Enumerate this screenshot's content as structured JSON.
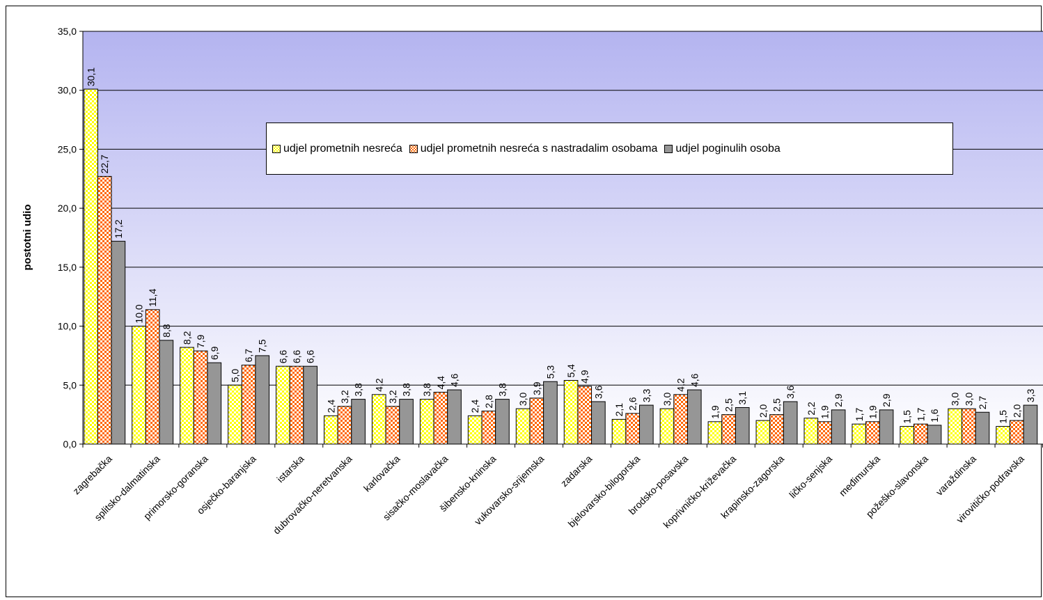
{
  "chart_data": {
    "type": "bar",
    "ylabel": "postotni udio",
    "ylim": [
      0,
      35
    ],
    "yticks": [
      "0,0",
      "5,0",
      "10,0",
      "15,0",
      "20,0",
      "25,0",
      "30,0",
      "35,0"
    ],
    "grid": true,
    "legend_position": "top-center",
    "categories": [
      "zagrebačka",
      "splitsko-dalmatinska",
      "primorsko-goranska",
      "osječko-baranjska",
      "istarska",
      "dubrovačko-neretvanska",
      "karlovačka",
      "sisačko-moslavačka",
      "šibensko-kninska",
      "vukovarsko-srijemska",
      "zadarska",
      "bjelovarsko-bilogorska",
      "brodsko-posavska",
      "koprivničko-križevačka",
      "krapinsko-zagorska",
      "ličko-senjska",
      "međimurska",
      "požeško-slavonska",
      "varaždinska",
      "virovitičko-podravska"
    ],
    "series": [
      {
        "name": "udjel prometnih nesreća",
        "color": "#ffff00",
        "alt_color": "#ffffff",
        "values": [
          30.1,
          10.0,
          8.2,
          5.0,
          6.6,
          2.4,
          4.2,
          3.8,
          2.4,
          3.0,
          5.4,
          2.1,
          3.0,
          1.9,
          2.0,
          2.2,
          1.7,
          1.5,
          3.0,
          1.5
        ],
        "labels": [
          "30,1",
          "10,0",
          "8,2",
          "5,0",
          "6,6",
          "2,4",
          "4,2",
          "3,8",
          "2,4",
          "3,0",
          "5,4",
          "2,1",
          "3,0",
          "1,9",
          "2,0",
          "2,2",
          "1,7",
          "1,5",
          "3,0",
          "1,5"
        ]
      },
      {
        "name": "udjel prometnih nesreća s nastradalim osobama",
        "color": "#ff6600",
        "alt_color": "#ffffff",
        "values": [
          22.7,
          11.4,
          7.9,
          6.7,
          6.6,
          3.2,
          3.2,
          4.4,
          2.8,
          3.9,
          4.9,
          2.6,
          4.2,
          2.5,
          2.5,
          1.9,
          1.9,
          1.7,
          3.0,
          2.0
        ],
        "labels": [
          "22,7",
          "11,4",
          "7,9",
          "6,7",
          "6,6",
          "3,2",
          "3,2",
          "4,4",
          "2,8",
          "3,9",
          "4,9",
          "2,6",
          "4,2",
          "2,5",
          "2,5",
          "1,9",
          "1,9",
          "1,7",
          "3,0",
          "2,0"
        ]
      },
      {
        "name": "udjel poginulih osoba",
        "color": "#969696",
        "alt_color": "#969696",
        "values": [
          17.2,
          8.8,
          6.9,
          7.5,
          6.6,
          3.8,
          3.8,
          4.6,
          3.8,
          5.3,
          3.6,
          3.3,
          4.6,
          3.1,
          3.6,
          2.9,
          2.9,
          1.6,
          2.7,
          3.3
        ],
        "labels": [
          "17,2",
          "8,8",
          "6,9",
          "7,5",
          "6,6",
          "3,8",
          "3,8",
          "4,6",
          "3,8",
          "5,3",
          "3,6",
          "3,3",
          "4,6",
          "3,1",
          "3,6",
          "2,9",
          "2,9",
          "1,6",
          "2,7",
          "3,3"
        ]
      }
    ],
    "plot_background_top": "#b4b4f0",
    "plot_background_bottom": "#ffffff"
  }
}
